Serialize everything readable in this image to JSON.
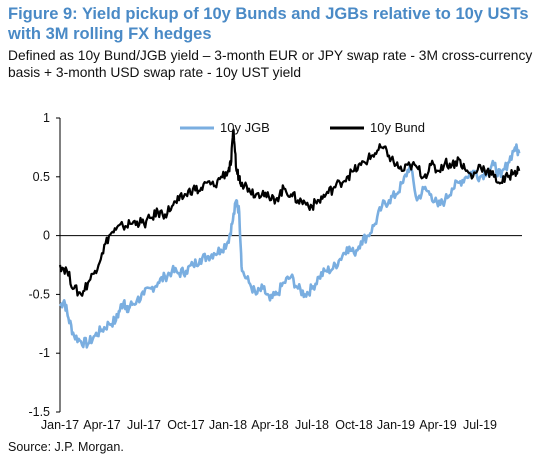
{
  "chart_data": {
    "type": "line",
    "title": "Figure 9: Yield pickup of 10y Bunds and JGBs relative to 10y USTs with 3M rolling FX hedges",
    "subtitle": "Defined as 10y Bund/JGB yield – 3-month EUR or JPY swap rate - 3M cross-currency basis + 3-month USD swap rate - 10y UST yield",
    "source": "Source: J.P. Morgan.",
    "xlabel": "",
    "ylabel": "",
    "ylim": [
      -1.5,
      1
    ],
    "yticks": [
      "1",
      "0.5",
      "0",
      "-0.5",
      "-1",
      "-1.5"
    ],
    "xticks": [
      "Jan-17",
      "Apr-17",
      "Jul-17",
      "Oct-17",
      "Jan-18",
      "Apr-18",
      "Jul-18",
      "Oct-18",
      "Jan-19",
      "Apr-19",
      "Jul-19"
    ],
    "grid": false,
    "legend": "top",
    "series": [
      {
        "name": "10y JGB",
        "color": "#7aaee0",
        "x": [
          0,
          0.3,
          0.6,
          1,
          1.5,
          2,
          2.5,
          3,
          3.5,
          4,
          4.3,
          4.6,
          4.8,
          5,
          5.5,
          6,
          6.5,
          7,
          7.5,
          8,
          8.5,
          9,
          9.5,
          10,
          10.5,
          11,
          11.5,
          12,
          12.3,
          12.6,
          12.8,
          13,
          13.5,
          14,
          14.5,
          15,
          15.5,
          16,
          16.5,
          17,
          17.5,
          18,
          18.5,
          19,
          19.5,
          20,
          20.5,
          21,
          21.5,
          22,
          22.5,
          23,
          23.5,
          24,
          24.5,
          25,
          25.5,
          26,
          26.5,
          27,
          27.5,
          28,
          28.5,
          29,
          29.5,
          30,
          30.5,
          31,
          31.5,
          32,
          32.5,
          32.8
        ],
        "values": [
          -0.6,
          -0.55,
          -0.7,
          -0.85,
          -0.9,
          -0.92,
          -0.85,
          -0.8,
          -0.75,
          -0.72,
          -0.62,
          -0.55,
          -0.65,
          -0.6,
          -0.55,
          -0.5,
          -0.45,
          -0.4,
          -0.35,
          -0.3,
          -0.32,
          -0.3,
          -0.25,
          -0.2,
          -0.18,
          -0.15,
          -0.12,
          -0.05,
          0.1,
          0.3,
          0.2,
          -0.3,
          -0.4,
          -0.5,
          -0.45,
          -0.55,
          -0.5,
          -0.4,
          -0.35,
          -0.45,
          -0.5,
          -0.45,
          -0.35,
          -0.3,
          -0.28,
          -0.2,
          -0.1,
          -0.15,
          -0.05,
          0,
          0.1,
          0.25,
          0.3,
          0.35,
          0.45,
          0.6,
          0.3,
          0.4,
          0.35,
          0.25,
          0.3,
          0.4,
          0.45,
          0.5,
          0.55,
          0.5,
          0.55,
          0.6,
          0.5,
          0.62,
          0.75,
          0.7
        ]
      },
      {
        "name": "10y Bund",
        "color": "#000000",
        "x": [
          0,
          0.5,
          1,
          1.5,
          2,
          2.5,
          3,
          3.5,
          4,
          4.5,
          5,
          5.5,
          6,
          6.5,
          7,
          7.5,
          8,
          8.5,
          9,
          9.5,
          10,
          10.5,
          11,
          11.5,
          12,
          12.2,
          12.4,
          12.6,
          12.8,
          13,
          13.5,
          14,
          14.5,
          15,
          15.5,
          16,
          16.5,
          17,
          17.5,
          18,
          18.5,
          19,
          19.5,
          20,
          20.5,
          21,
          21.5,
          22,
          22.5,
          23,
          23.5,
          24,
          24.5,
          25,
          25.5,
          26,
          26.5,
          27,
          27.5,
          28,
          28.5,
          29,
          29.5,
          30,
          30.5,
          31,
          31.5,
          32,
          32.5,
          32.8
        ],
        "values": [
          -0.25,
          -0.3,
          -0.45,
          -0.5,
          -0.4,
          -0.3,
          -0.15,
          0,
          0.05,
          0.08,
          0.1,
          0.12,
          0.1,
          0.15,
          0.2,
          0.18,
          0.25,
          0.3,
          0.35,
          0.4,
          0.38,
          0.45,
          0.42,
          0.5,
          0.55,
          0.6,
          0.9,
          0.55,
          0.5,
          0.45,
          0.4,
          0.35,
          0.38,
          0.3,
          0.32,
          0.4,
          0.35,
          0.3,
          0.28,
          0.25,
          0.3,
          0.35,
          0.4,
          0.45,
          0.5,
          0.55,
          0.6,
          0.65,
          0.7,
          0.75,
          0.68,
          0.6,
          0.55,
          0.6,
          0.58,
          0.5,
          0.6,
          0.55,
          0.62,
          0.6,
          0.65,
          0.55,
          0.5,
          0.6,
          0.55,
          0.5,
          0.45,
          0.5,
          0.55,
          0.55
        ]
      }
    ]
  }
}
